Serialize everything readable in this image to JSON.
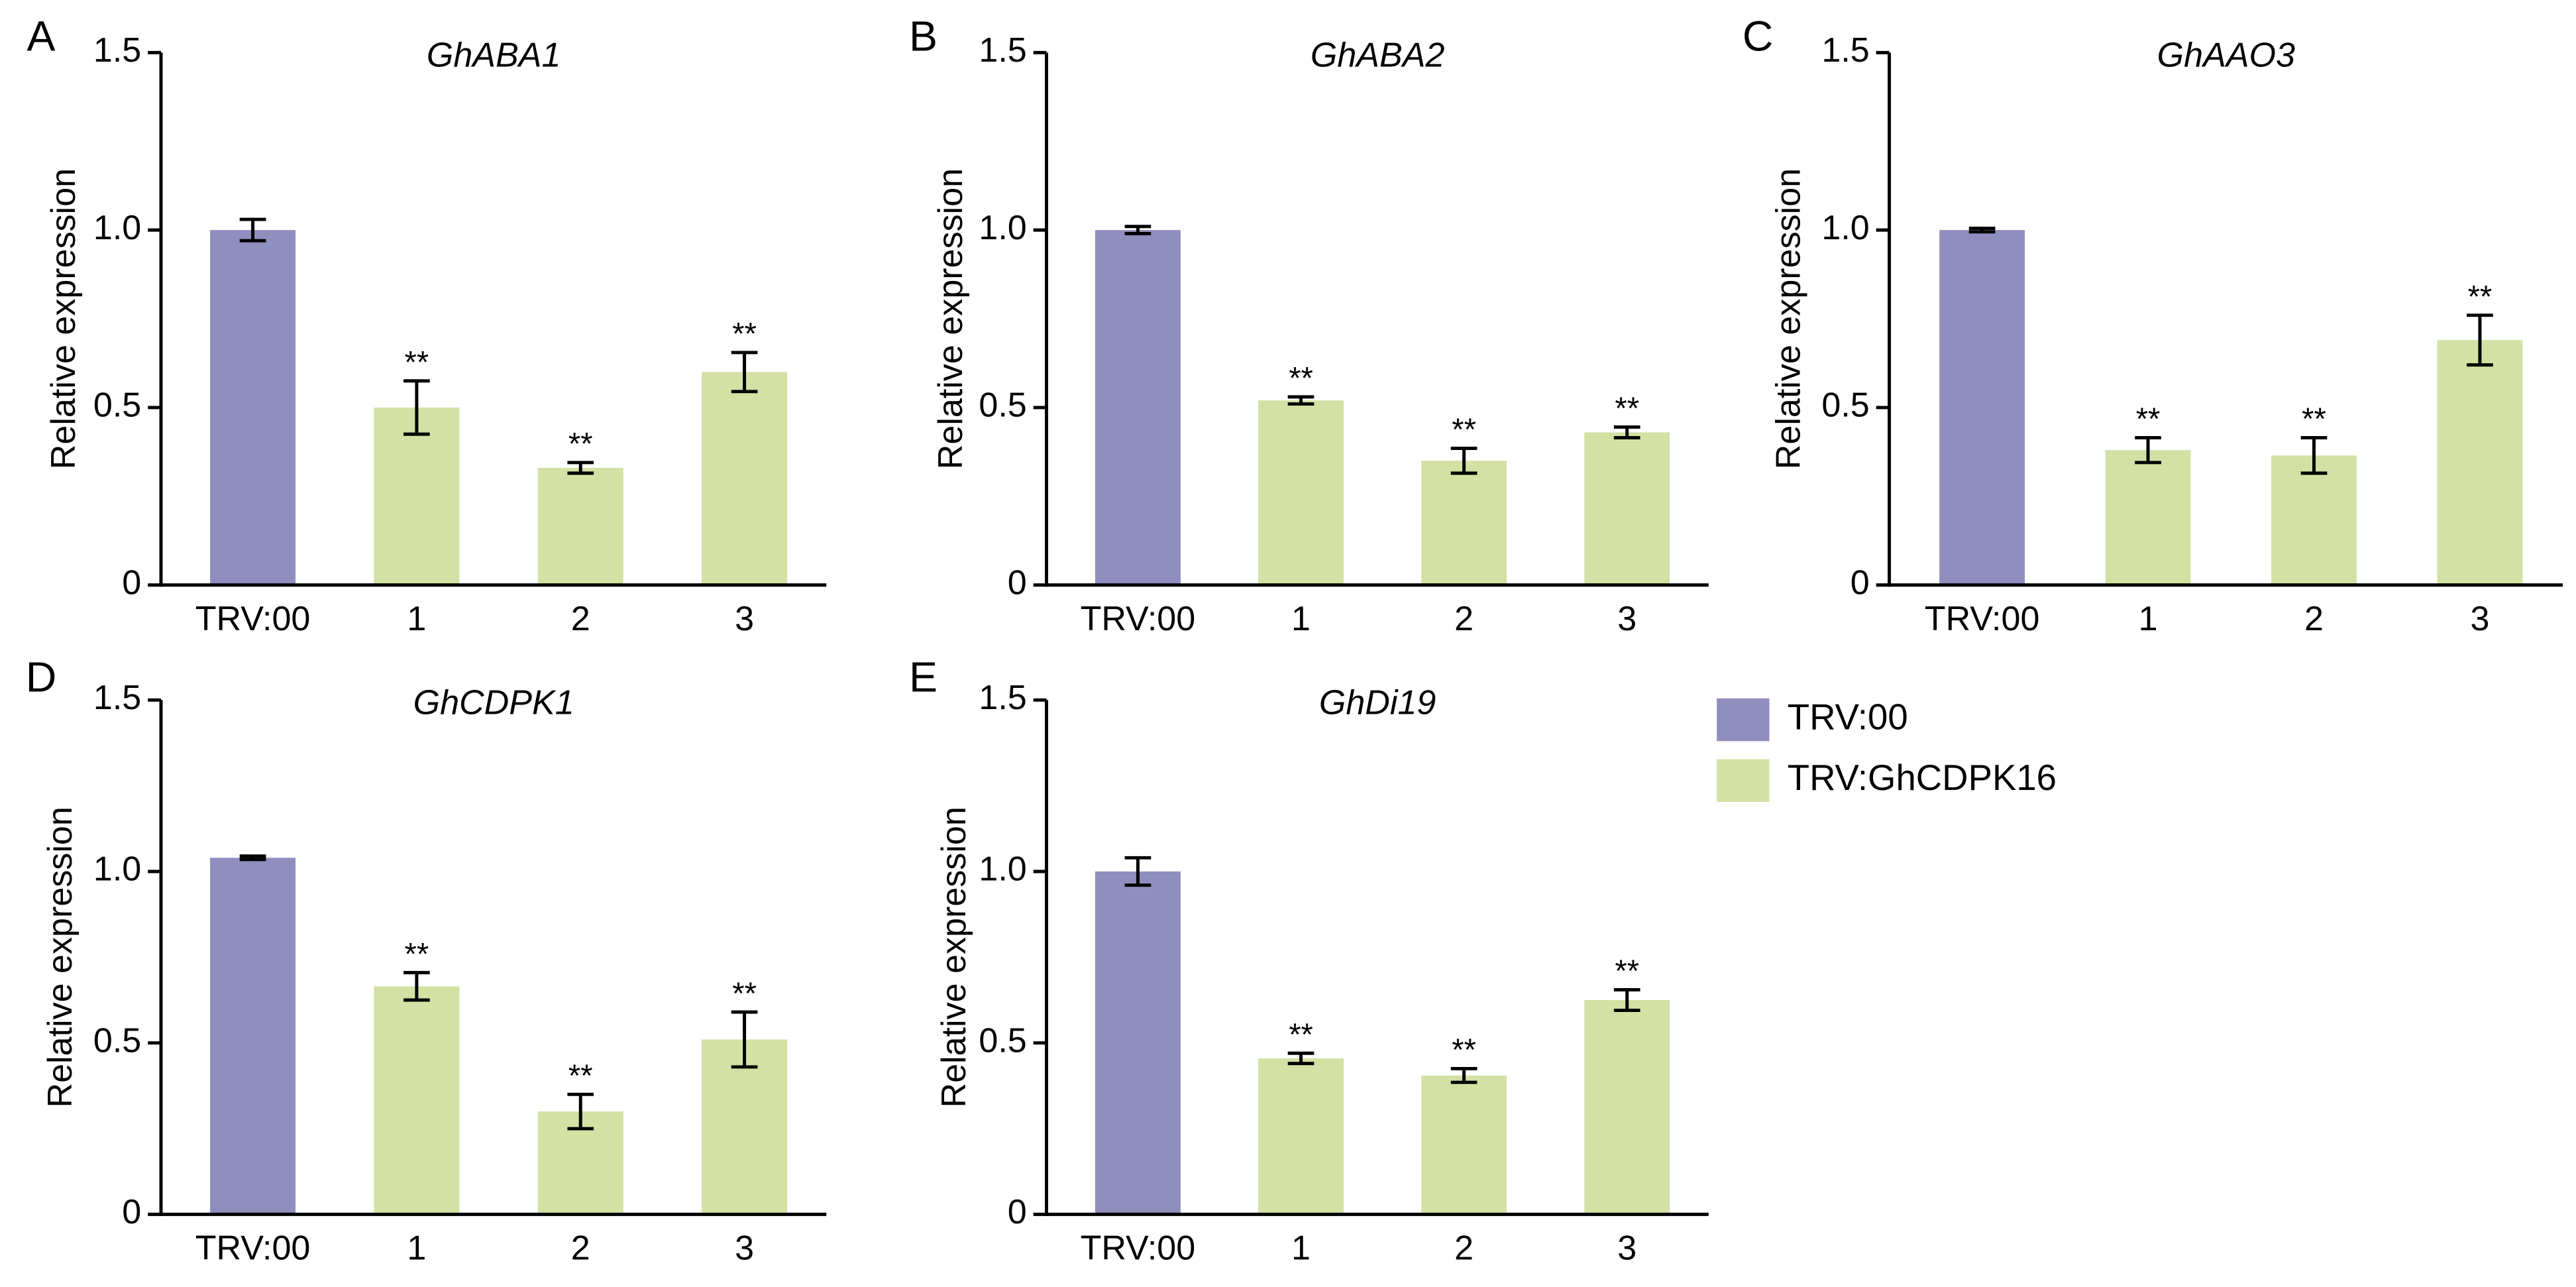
{
  "chart_data": [
    {
      "type": "bar",
      "panel": "A",
      "title": "GhABA1",
      "ylabel": "Relative expression",
      "categories": [
        "TRV:00",
        "1",
        "2",
        "3"
      ],
      "values": [
        1.0,
        0.5,
        0.33,
        0.6
      ],
      "errors": [
        0.03,
        0.075,
        0.015,
        0.055
      ],
      "significance": [
        null,
        "**",
        "**",
        "**"
      ],
      "colors": [
        "#8f8ebe",
        "#d3e1a4",
        "#d3e1a4",
        "#d3e1a4"
      ],
      "ylim": [
        0,
        1.5
      ],
      "yticks": [
        0,
        0.5,
        {
          "value": 1,
          "label": "1.0"
        },
        1.5
      ]
    },
    {
      "type": "bar",
      "panel": "B",
      "title": "GhABA2",
      "ylabel": "Relative expression",
      "categories": [
        "TRV:00",
        "1",
        "2",
        "3"
      ],
      "values": [
        1.0,
        0.52,
        0.35,
        0.43
      ],
      "errors": [
        0.01,
        0.01,
        0.035,
        0.015
      ],
      "significance": [
        null,
        "**",
        "**",
        "**"
      ],
      "colors": [
        "#8f8ebe",
        "#d3e1a4",
        "#d3e1a4",
        "#d3e1a4"
      ],
      "ylim": [
        0,
        1.5
      ],
      "yticks": [
        0,
        0.5,
        {
          "value": 1,
          "label": "1.0"
        },
        1.5
      ]
    },
    {
      "type": "bar",
      "panel": "C",
      "title": "GhAAO3",
      "ylabel": "Relative expression",
      "categories": [
        "TRV:00",
        "1",
        "2",
        "3"
      ],
      "values": [
        1.0,
        0.38,
        0.365,
        0.69
      ],
      "errors": [
        0.005,
        0.035,
        0.05,
        0.07
      ],
      "significance": [
        null,
        "**",
        "**",
        "**"
      ],
      "colors": [
        "#8f8ebe",
        "#d3e1a4",
        "#d3e1a4",
        "#d3e1a4"
      ],
      "ylim": [
        0,
        1.5
      ],
      "yticks": [
        0,
        0.5,
        {
          "value": 1,
          "label": "1.0"
        },
        1.5
      ]
    },
    {
      "type": "bar",
      "panel": "D",
      "title": "GhCDPK1",
      "ylabel": "Relative expression",
      "categories": [
        "TRV:00",
        "1",
        "2",
        "3"
      ],
      "values": [
        1.04,
        0.665,
        0.3,
        0.51
      ],
      "errors": [
        0.005,
        0.04,
        0.05,
        0.08
      ],
      "significance": [
        null,
        "**",
        "**",
        "**"
      ],
      "colors": [
        "#8f8ebe",
        "#d3e1a4",
        "#d3e1a4",
        "#d3e1a4"
      ],
      "ylim": [
        0,
        1.5
      ],
      "yticks": [
        0,
        0.5,
        {
          "value": 1,
          "label": "1.0"
        },
        1.5
      ]
    },
    {
      "type": "bar",
      "panel": "E",
      "title": "GhDi19",
      "ylabel": "Relative expression",
      "categories": [
        "TRV:00",
        "1",
        "2",
        "3"
      ],
      "values": [
        1.0,
        0.455,
        0.405,
        0.625
      ],
      "errors": [
        0.04,
        0.015,
        0.02,
        0.03
      ],
      "significance": [
        null,
        "**",
        "**",
        "**"
      ],
      "colors": [
        "#8f8ebe",
        "#d3e1a4",
        "#d3e1a4",
        "#d3e1a4"
      ],
      "ylim": [
        0,
        1.5
      ],
      "yticks": [
        0,
        0.5,
        {
          "value": 1,
          "label": "1.0"
        },
        1.5
      ]
    }
  ],
  "legend": {
    "entries": [
      {
        "name": "TRV:00",
        "color": "#8f8ebe"
      },
      {
        "name": "TRV:GhCDPK16",
        "color": "#d3e1a4"
      }
    ]
  }
}
